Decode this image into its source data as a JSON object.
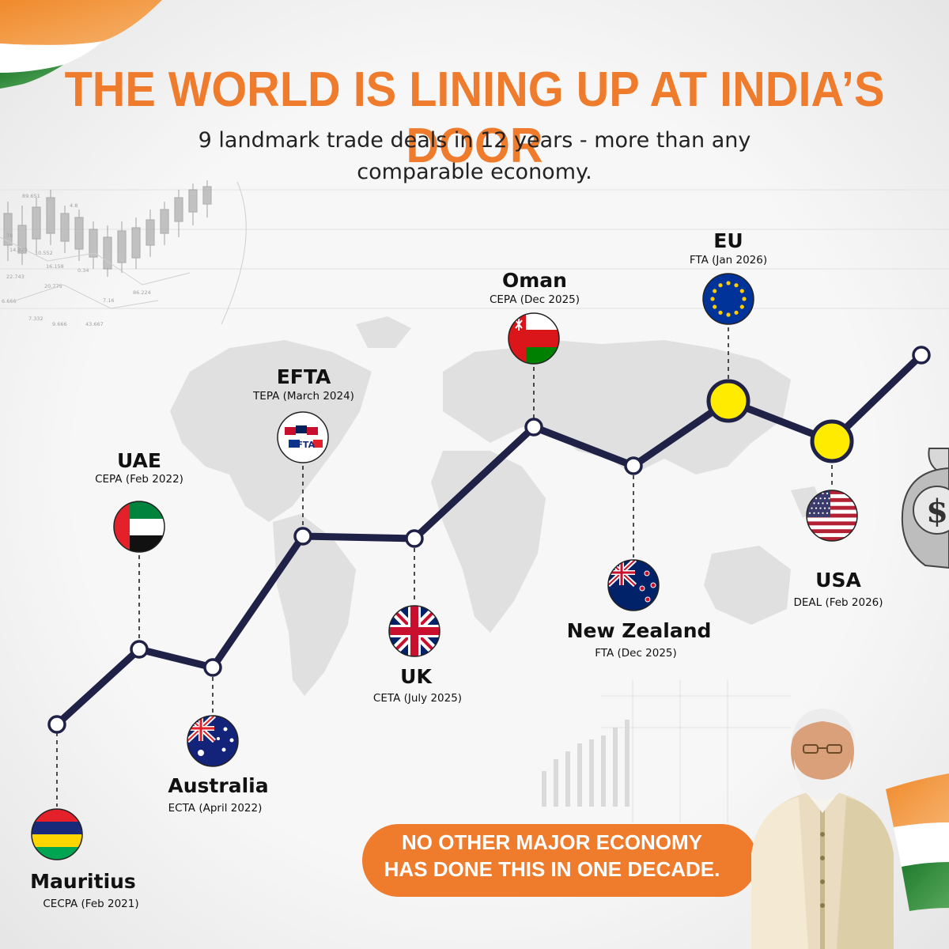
{
  "headline": "THE WORLD IS LINING UP AT INDIA’S DOOR",
  "subtitle_line1": "9 landmark trade deals in 12 years - more than any",
  "subtitle_line2": "comparable economy.",
  "deals": [
    {
      "country": "Mauritius",
      "agreement": "CECPA (Feb 2021)",
      "flag_icon": "mauritius-flag-icon"
    },
    {
      "country": "UAE",
      "agreement": "CEPA (Feb 2022)",
      "flag_icon": "uae-flag-icon"
    },
    {
      "country": "Australia",
      "agreement": "ECTA (April 2022)",
      "flag_icon": "australia-flag-icon"
    },
    {
      "country": "EFTA",
      "agreement": "TEPA (March 2024)",
      "flag_icon": "efta-flag-icon",
      "flag_text": "EFTA"
    },
    {
      "country": "UK",
      "agreement": "CETA (July 2025)",
      "flag_icon": "uk-flag-icon"
    },
    {
      "country": "Oman",
      "agreement": "CEPA  (Dec 2025)",
      "flag_icon": "oman-flag-icon"
    },
    {
      "country": "New Zealand",
      "agreement": "FTA (Dec 2025)",
      "flag_icon": "new-zealand-flag-icon"
    },
    {
      "country": "EU",
      "agreement": "FTA  (Jan 2026)",
      "flag_icon": "eu-flag-icon"
    },
    {
      "country": "USA",
      "agreement": "DEAL (Feb 2026)",
      "flag_icon": "usa-flag-icon"
    }
  ],
  "callout_line1": "NO OTHER MAJOR ECONOMY",
  "callout_line2": "HAS DONE THIS IN ONE DECADE.",
  "decor": {
    "bag_symbol": "$",
    "background_chart_labels": [
      "89.651",
      "4.8",
      "78",
      "14.229",
      "10.552",
      "16.158",
      "22.743",
      "0.34",
      "20.775",
      "86.224",
      "6.666",
      "7.332",
      "9.666",
      "43.667",
      "7.16"
    ]
  },
  "colors": {
    "headline": "#ef7b2d",
    "timeline_line": "#1f2146",
    "highlight_node": "#ffeb00",
    "callout_bg": "#ef7b2d",
    "saffron": "#f08a2c",
    "india_green": "#2e8b3a"
  }
}
